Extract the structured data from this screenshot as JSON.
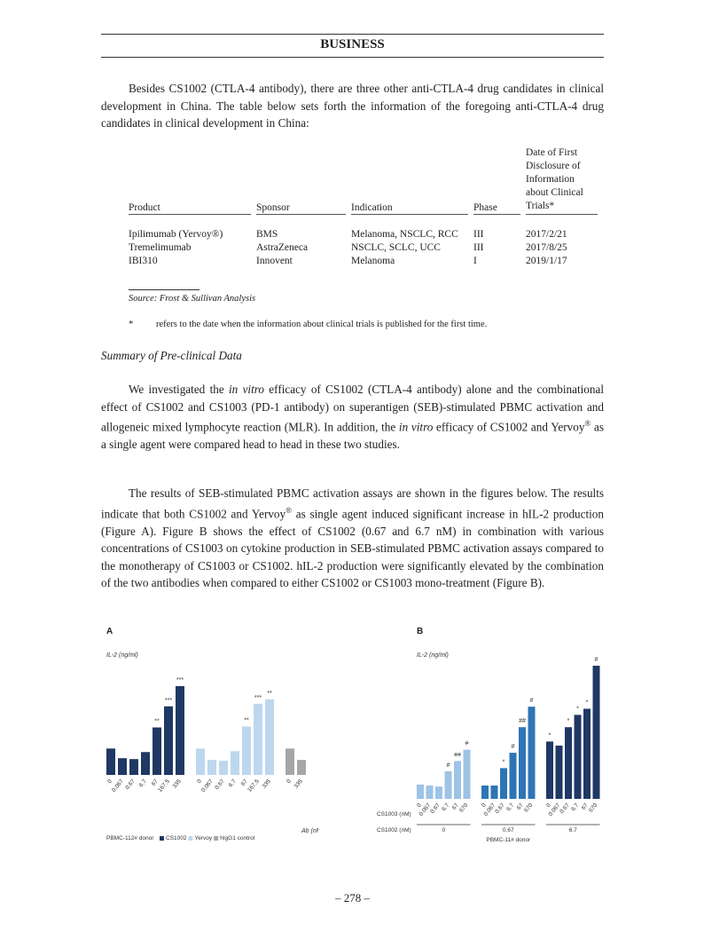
{
  "header": {
    "title": "BUSINESS"
  },
  "paragraphs": [
    [
      "Besides CS1002 (CTLA-4 antibody), there are three other anti-CTLA-4 drug candidates in clinical development in China. The table below sets forth the information of the foregoing anti-CTLA-4 drug candidates in clinical development in China:"
    ],
    [
      "We investigated the ",
      "in vitro",
      " efficacy of CS1002 (CTLA-4 antibody) alone and the combinational effect of CS1002 and CS1003 (PD-1 antibody) on superantigen (SEB)-stimulated PBMC activation and allogeneic mixed lymphocyte reaction (MLR). In addition, the ",
      "in vitro",
      " efficacy of CS1002 and Yervoy",
      "®",
      " as a single agent were compared head to head in these two studies."
    ],
    [
      "The results of SEB-stimulated PBMC activation assays are shown in the figures below. The results indicate that both CS1002 and Yervoy",
      "®",
      " as single agent induced significant increase in hIL-2 production (Figure A). Figure B shows the effect of CS1002 (0.67 and 6.7 nM) in combination with various concentrations of CS1003 on cytokine production in SEB-stimulated PBMC activation assays compared to the monotherapy of CS1003 or CS1002. hIL-2 production were significantly elevated by the combination of the two antibodies when compared to either CS1002 or CS1003 mono-treatment (Figure B)."
    ]
  ],
  "table": {
    "columns": [
      "Product",
      "Sponsor",
      "Indication",
      "Phase",
      "Date of First Disclosure of Information about Clinical Trials*"
    ],
    "rows": [
      [
        "Ipilimumab (Yervoy®)",
        "BMS",
        "Melanoma, NSCLC, RCC",
        "III",
        "2017/2/21"
      ],
      [
        "Tremelimumab",
        "AstraZeneca",
        "NSCLC, SCLC, UCC",
        "III",
        "2017/8/25"
      ],
      [
        "IBI310",
        "Innovent",
        "Melanoma",
        "I",
        "2019/1/17"
      ]
    ],
    "source": "Source: Frost & Sullivan Analysis",
    "footnote": {
      "mark": "*",
      "text": "refers to the date when the information about clinical trials is published for the first time."
    }
  },
  "section_heading": "Summary of Pre-clinical Data",
  "figures": [
    {
      "type": "bar",
      "label": "A",
      "ylabel": "IL-2 (ng/ml)",
      "x_unit": "Ab (nM)",
      "donor": "PBMC-112# donor",
      "groups": [
        {
          "name": "CS1002",
          "color": "#1f3864",
          "categories": [
            "0",
            "0.067",
            "0.67",
            "6.7",
            "67",
            "167.5",
            "335"
          ],
          "values": [
            30,
            19,
            18,
            26,
            54,
            78,
            101
          ],
          "annotations": [
            null,
            null,
            null,
            null,
            "**",
            "***",
            "***"
          ]
        },
        {
          "name": "Yervoy",
          "color": "#bdd7ee",
          "categories": [
            "0",
            "0.067",
            "0.67",
            "6.7",
            "67",
            "167.5",
            "335"
          ],
          "values": [
            30,
            17,
            16,
            27,
            55,
            81,
            86
          ],
          "annotations": [
            null,
            null,
            null,
            null,
            "**",
            "***",
            "**"
          ]
        },
        {
          "name": "hIgG1 control",
          "color": "#a6a6a6",
          "categories": [
            "0",
            "335"
          ],
          "values": [
            30,
            17
          ],
          "annotations": [
            null,
            null
          ]
        }
      ]
    },
    {
      "type": "bar",
      "label": "B",
      "ylabel": "IL-2 (ng/ml)",
      "row1_label": "CS1003 (nM)",
      "row2_label": "CS1002 (nM)",
      "donor": "PBMC-11# donor",
      "groups": [
        {
          "name": "0",
          "color": "#9dc3e6",
          "categories": [
            "0",
            "0.067",
            "0.67",
            "6.7",
            "67",
            "670"
          ],
          "values": [
            14,
            13,
            12,
            27,
            37,
            48
          ],
          "annotations": [
            null,
            null,
            null,
            "#",
            "##",
            "#"
          ]
        },
        {
          "name": "0.67",
          "color": "#2e75b6",
          "categories": [
            "0",
            "0.067",
            "0.67",
            "6.7",
            "67",
            "670"
          ],
          "values": [
            13,
            13,
            30,
            45,
            70,
            90
          ],
          "annotations": [
            null,
            null,
            "*",
            "#",
            "##",
            "#"
          ]
        },
        {
          "name": "6.7",
          "color": "#1f3864",
          "categories": [
            "0",
            "0.067",
            "0.67",
            "6.7",
            "67",
            "670"
          ],
          "values": [
            56,
            52,
            70,
            82,
            88,
            130
          ],
          "annotations": [
            "*",
            null,
            "*",
            "*",
            "*",
            "#"
          ]
        }
      ]
    }
  ],
  "footer": {
    "page": "– 278 –"
  }
}
